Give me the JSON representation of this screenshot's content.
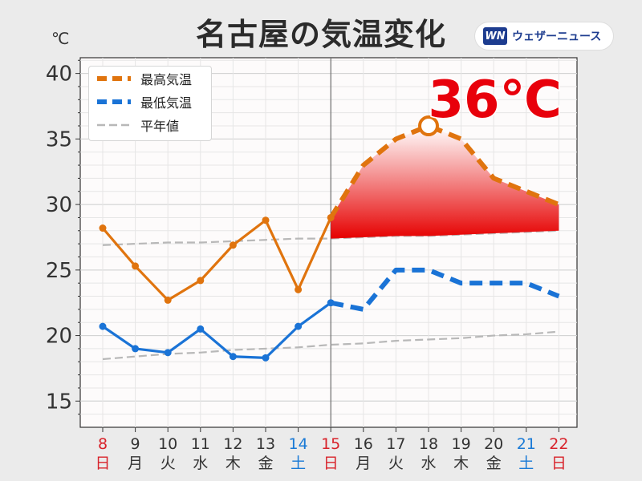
{
  "title": "名古屋の気温変化",
  "unit_label": "℃",
  "brand": {
    "logo_text": "WN",
    "name": "ウェザーニュース"
  },
  "peak_label": "36℃",
  "colors": {
    "max": "#e0740e",
    "min": "#1a73d6",
    "normal": "#b8b8b8",
    "peak_text": "#e8000b",
    "sunday": "#d8222a",
    "saturday": "#1a7ad6",
    "weekday": "#333333"
  },
  "chart_data": {
    "type": "line",
    "title": "名古屋の気温変化",
    "ylabel": "℃",
    "ylim": [
      13,
      41.2
    ],
    "yticks": [
      15,
      20,
      25,
      30,
      35,
      40
    ],
    "grid": true,
    "legend_position": "top-left",
    "x": [
      "8",
      "9",
      "10",
      "11",
      "12",
      "13",
      "14",
      "15",
      "16",
      "17",
      "18",
      "19",
      "20",
      "21",
      "22"
    ],
    "weekdays": [
      "日",
      "月",
      "火",
      "水",
      "木",
      "金",
      "土",
      "日",
      "月",
      "火",
      "水",
      "木",
      "金",
      "土",
      "日"
    ],
    "day_types": [
      "sun",
      "wk",
      "wk",
      "wk",
      "wk",
      "wk",
      "sat",
      "sun",
      "wk",
      "wk",
      "wk",
      "wk",
      "wk",
      "sat",
      "sun"
    ],
    "observed_until_index": 7,
    "series": [
      {
        "name": "最高気温",
        "key": "max",
        "style": "observed-solid-forecast-dashed",
        "values": [
          28.2,
          25.3,
          22.7,
          24.2,
          26.9,
          28.8,
          23.5,
          29.0,
          33.0,
          35.0,
          36.0,
          35.0,
          32.0,
          31.0,
          30.0
        ]
      },
      {
        "name": "最低気温",
        "key": "min",
        "style": "observed-solid-forecast-dashed",
        "values": [
          20.7,
          19.0,
          18.7,
          20.5,
          18.4,
          18.3,
          20.7,
          22.5,
          22.0,
          25.0,
          25.0,
          24.0,
          24.0,
          24.0,
          23.0
        ]
      },
      {
        "name": "平年値",
        "key": "normal_max",
        "style": "dashed",
        "values": [
          26.9,
          27.0,
          27.1,
          27.1,
          27.2,
          27.3,
          27.4,
          27.4,
          27.5,
          27.6,
          27.6,
          27.7,
          27.8,
          27.9,
          28.0
        ]
      },
      {
        "key": "normal_min",
        "style": "dashed",
        "values": [
          18.2,
          18.4,
          18.6,
          18.7,
          18.9,
          19.0,
          19.1,
          19.3,
          19.4,
          19.6,
          19.7,
          19.8,
          20.0,
          20.1,
          20.3
        ]
      }
    ],
    "peak_index": 10
  }
}
